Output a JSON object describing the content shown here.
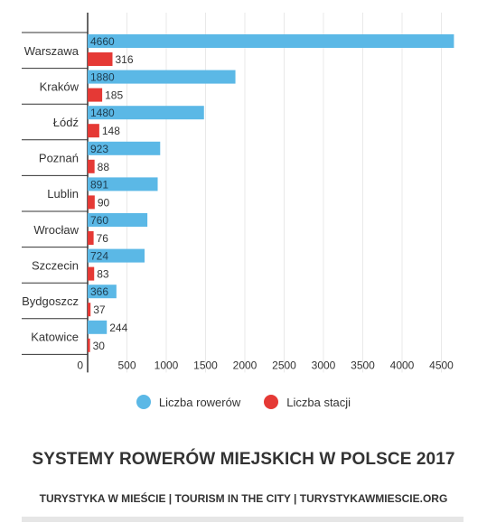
{
  "chart_data": {
    "type": "bar",
    "orientation": "horizontal",
    "categories": [
      "Warszawa",
      "Kraków",
      "Łódź",
      "Poznań",
      "Lublin",
      "Wrocław",
      "Szczecin",
      "Bydgoszcz",
      "Katowice"
    ],
    "series": [
      {
        "name": "Liczba rowerów",
        "values": [
          4660,
          1880,
          1480,
          923,
          891,
          760,
          724,
          366,
          244
        ],
        "color": "#5bb8e6"
      },
      {
        "name": "Liczba stacji",
        "values": [
          316,
          185,
          148,
          88,
          90,
          76,
          83,
          37,
          30
        ],
        "color": "#e53935"
      }
    ],
    "x_ticks": [
      "0",
      "500",
      "1000",
      "1500",
      "2000",
      "2500",
      "3000",
      "3500",
      "4000",
      "4500"
    ],
    "xlim": [
      0,
      4700
    ],
    "grid": true,
    "legend_position": "bottom"
  },
  "title": "SYSTEMY ROWERÓW MIEJSKICH W POLSCE 2017",
  "subtitle": "TURYSTYKA W MIEŚCIE | TOURISM IN THE CITY | TURYSTYKAWMIESCIE.ORG"
}
